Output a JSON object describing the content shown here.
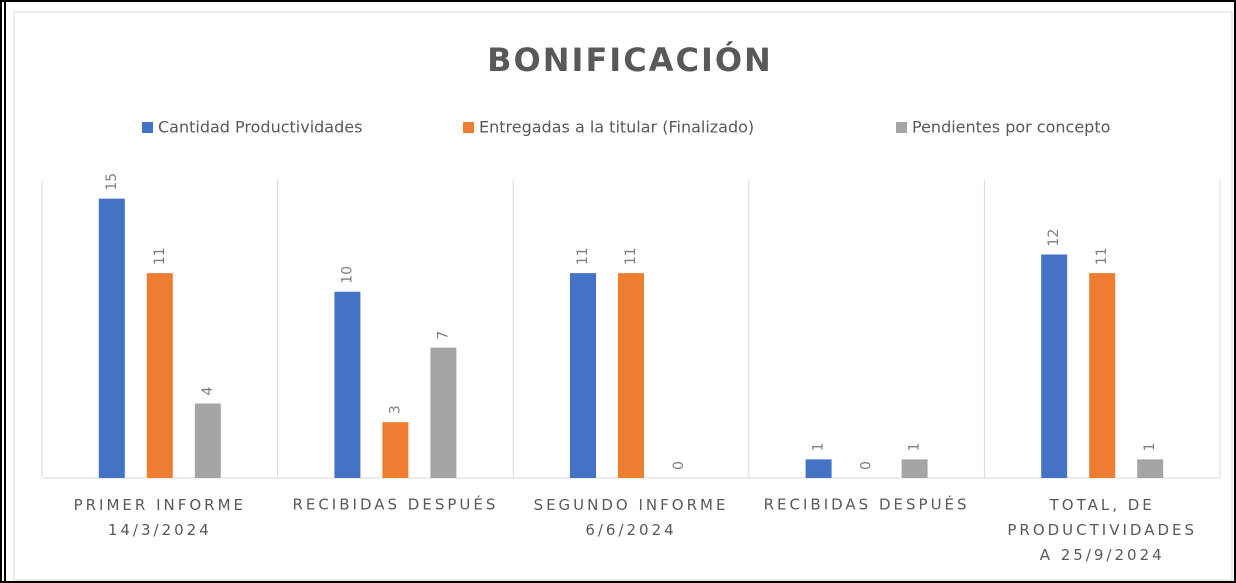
{
  "chart_data": {
    "type": "bar",
    "title": "BONIFICACIÓN",
    "categories": [
      "PRIMER INFORME\n14/3/2024",
      "RECIBIDAS DESPUÉS",
      "SEGUNDO INFORME\n6/6/2024",
      "RECIBIDAS DESPUÉS",
      "TOTAL, DE\nPRODUCTIVIDADES\nA 25/9/2024"
    ],
    "series": [
      {
        "name": "Cantidad Productividades",
        "color": "#4472c4",
        "values": [
          15,
          10,
          11,
          1,
          12
        ]
      },
      {
        "name": "Entregadas a la titular (Finalizado)",
        "color": "#ed7d31",
        "values": [
          11,
          3,
          11,
          0,
          11
        ]
      },
      {
        "name": "Pendientes por concepto",
        "color": "#a5a5a5",
        "values": [
          4,
          7,
          0,
          1,
          1
        ]
      }
    ],
    "ylim": [
      0,
      16
    ],
    "legend": "top"
  }
}
